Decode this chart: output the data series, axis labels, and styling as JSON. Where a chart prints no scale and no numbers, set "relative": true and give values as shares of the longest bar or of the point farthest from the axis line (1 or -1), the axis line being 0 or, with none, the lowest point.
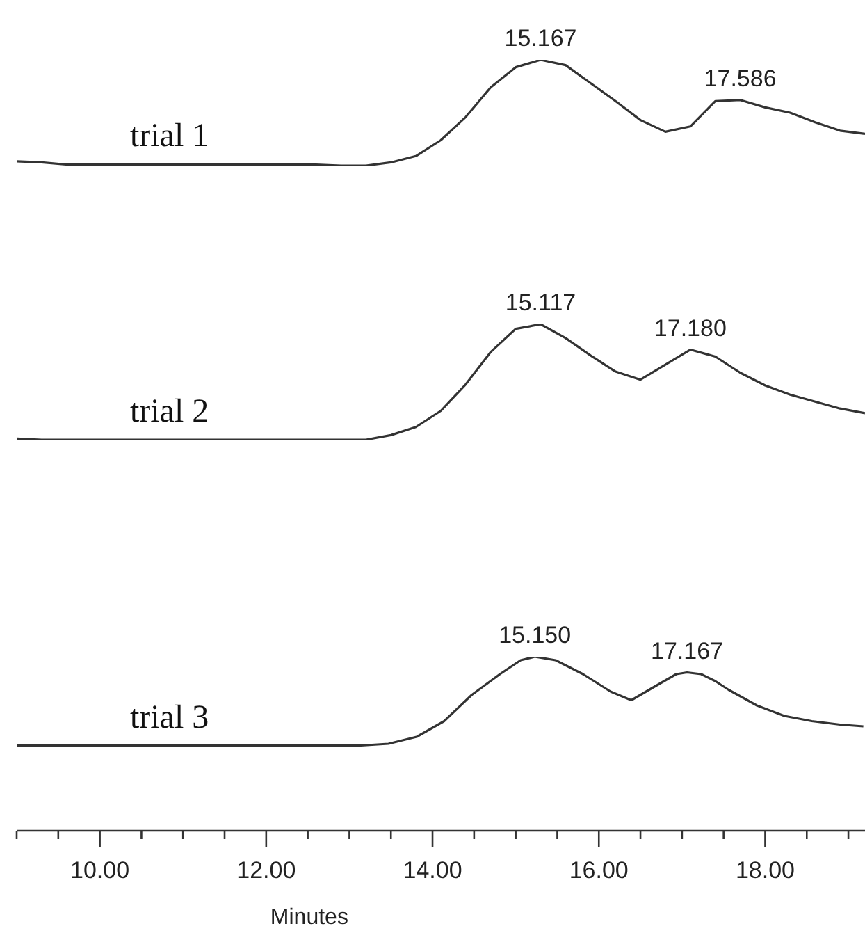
{
  "chart_data": [
    {
      "type": "line",
      "relative": true,
      "tick_labels": false,
      "categories": [
        null,
        null,
        null,
        null,
        null,
        null,
        null,
        null,
        null,
        null,
        null,
        null,
        null,
        null,
        null,
        null,
        null,
        null,
        null,
        null,
        null,
        null,
        null,
        null,
        null,
        null,
        null,
        null,
        null,
        null,
        null,
        null,
        null,
        null,
        null
      ],
      "series": [
        {
          "name": "trial 1",
          "color": "#333333",
          "values": [
            0.04,
            0.03,
            0.01,
            0.01,
            0.01,
            0.01,
            0.01,
            0.01,
            0.01,
            0.01,
            0.01,
            0.01,
            0.01,
            0,
            0,
            0.03,
            0.09,
            0.24,
            0.46,
            0.74,
            0.93,
            1,
            0.95,
            0.78,
            0.61,
            0.43,
            0.32,
            0.37,
            0.61,
            0.62,
            0.55,
            0.5,
            0.41,
            0.33,
            0.3
          ]
        }
      ],
      "annotations": [
        {
          "text": "15.167",
          "y": 1
        },
        {
          "text": "17.586",
          "y": 0.62
        }
      ]
    },
    {
      "type": "line",
      "relative": true,
      "tick_labels": false,
      "categories": [
        null,
        null,
        null,
        null,
        null,
        null,
        null,
        null,
        null,
        null,
        null,
        null,
        null,
        null,
        null,
        null,
        null,
        null,
        null,
        null,
        null,
        null,
        null,
        null,
        null,
        null,
        null,
        null,
        null,
        null,
        null,
        null,
        null,
        null,
        null
      ],
      "series": [
        {
          "name": "trial 2",
          "color": "#333333",
          "values": [
            0.01,
            0,
            0,
            0,
            0,
            0,
            0,
            0,
            0,
            0,
            0,
            0,
            0,
            0,
            0,
            0.04,
            0.11,
            0.25,
            0.48,
            0.76,
            0.96,
            1,
            0.88,
            0.73,
            0.59,
            0.52,
            0.65,
            0.78,
            0.72,
            0.58,
            0.47,
            0.39,
            0.33,
            0.27,
            0.23
          ]
        }
      ],
      "annotations": [
        {
          "text": "15.117",
          "y": 1
        },
        {
          "text": "17.180",
          "y": 0.78
        }
      ]
    },
    {
      "type": "line",
      "relative": true,
      "xlim": [
        9.0,
        19.2
      ],
      "tick_labels": "x",
      "xlabel": "Minutes",
      "xticks": [
        {
          "value": 9.0,
          "label": null
        },
        {
          "value": 9.5,
          "label": null
        },
        {
          "value": 10.0,
          "label": "10.00"
        },
        {
          "value": 10.5,
          "label": null
        },
        {
          "value": 11.0,
          "label": null
        },
        {
          "value": 11.5,
          "label": null
        },
        {
          "value": 12.0,
          "label": "12.00"
        },
        {
          "value": 12.5,
          "label": null
        },
        {
          "value": 13.0,
          "label": null
        },
        {
          "value": 13.5,
          "label": null
        },
        {
          "value": 14.0,
          "label": "14.00"
        },
        {
          "value": 14.5,
          "label": null
        },
        {
          "value": 15.0,
          "label": null
        },
        {
          "value": 15.5,
          "label": null
        },
        {
          "value": 16.0,
          "label": "16.00"
        },
        {
          "value": 16.5,
          "label": null
        },
        {
          "value": 17.0,
          "label": null
        },
        {
          "value": 17.5,
          "label": null
        },
        {
          "value": 18.0,
          "label": "18.00"
        },
        {
          "value": 18.5,
          "label": null
        },
        {
          "value": 19.0,
          "label": null
        }
      ],
      "x": [
        9.0,
        9.47,
        10.47,
        12.14,
        13.14,
        13.47,
        13.81,
        14.14,
        14.47,
        14.81,
        15.06,
        15.23,
        15.48,
        15.81,
        16.14,
        16.39,
        16.64,
        16.93,
        17.06,
        17.23,
        17.4,
        17.56,
        17.9,
        18.23,
        18.56,
        18.9,
        19.18
      ],
      "series": [
        {
          "name": "trial 3",
          "color": "#333333",
          "values": [
            0.49,
            0.49,
            0.49,
            0.49,
            0.49,
            0.5,
            0.54,
            0.63,
            0.78,
            0.9,
            0.98,
            1,
            0.98,
            0.9,
            0.8,
            0.75,
            0.82,
            0.9,
            0.91,
            0.9,
            0.86,
            0.81,
            0.72,
            0.66,
            0.63,
            0.61,
            0.6
          ]
        }
      ],
      "annotations": [
        {
          "text": "15.150",
          "x": 15.23,
          "y": 1
        },
        {
          "text": "17.167",
          "x": 17.06,
          "y": 0.91
        }
      ]
    }
  ]
}
